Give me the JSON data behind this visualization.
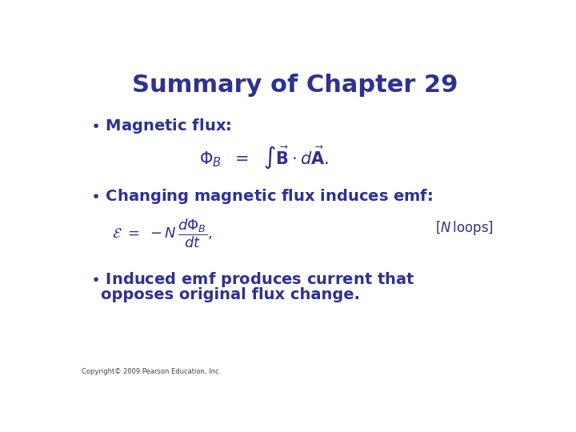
{
  "title": "Summary of Chapter 29",
  "title_color": "#2E3192",
  "title_fontsize": 22,
  "background_color": "#FFFFFF",
  "text_color": "#2E3192",
  "bullet1": "Magnetic flux:",
  "bullet2": "Changing magnetic flux induces emf:",
  "bullet3_line1": "Induced emf produces current that",
  "bullet3_line2": "opposes original flux change.",
  "copyright": "Copyright© 2009 Pearson Education, Inc.",
  "bullet_fontsize": 14,
  "formula_fontsize": 15,
  "formula2_fontsize": 13,
  "copyright_fontsize": 6,
  "loops_fontsize": 12
}
